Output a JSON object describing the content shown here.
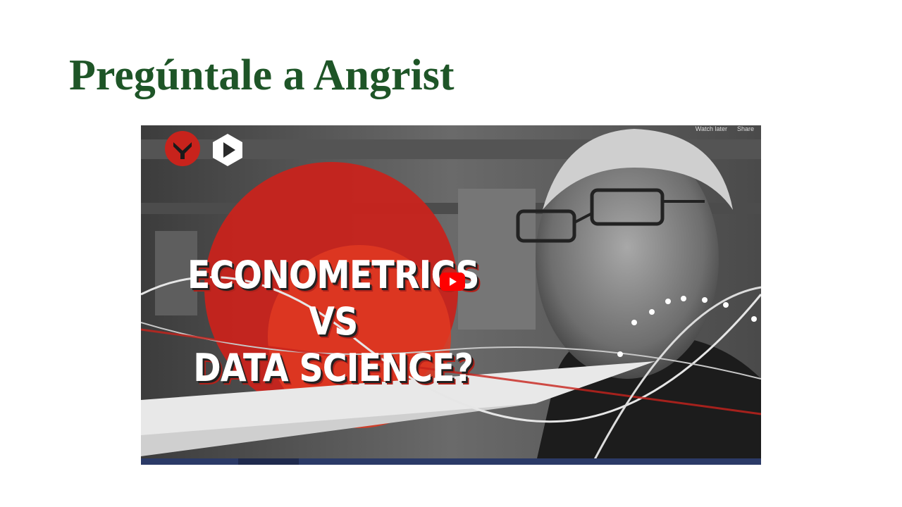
{
  "slide": {
    "title": "Pregúntale a Angrist"
  },
  "video": {
    "title_line1": "ECONOMETRICS VS",
    "title_line2": "DATA SCIENCE?",
    "watch_later_label": "Watch later",
    "share_label": "Share",
    "icons": {
      "channel": "channel-logo-icon",
      "play_badge": "play-hexagon-icon",
      "youtube_play": "youtube-play-icon"
    },
    "colors": {
      "title_green": "#1e5527",
      "accent_red": "#c8231c",
      "youtube_red": "#ff0000",
      "progress_bar": "#2b3a67"
    }
  }
}
